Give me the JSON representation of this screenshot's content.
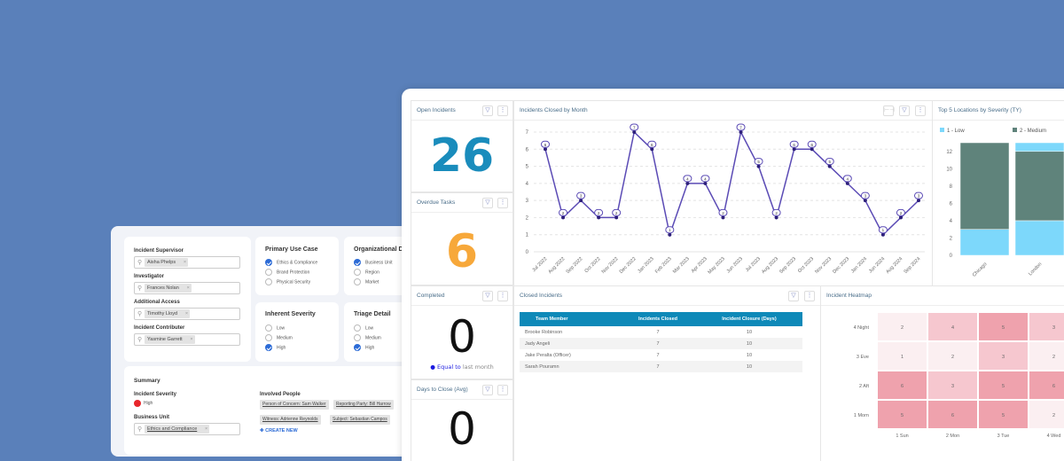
{
  "form": {
    "people": [
      {
        "label": "Incident Supervisor",
        "value": "Aisha Phelps"
      },
      {
        "label": "Investigator",
        "value": "Frances Nolan"
      },
      {
        "label": "Additional Access",
        "value": "Timothy Lloyd"
      },
      {
        "label": "Incident Contributer",
        "value": "Yasmine Garrett"
      }
    ],
    "primary_use_case": {
      "title": "Primary Use Case",
      "options": [
        {
          "label": "Ethics & Compliance",
          "checked": true
        },
        {
          "label": "Brand Protection",
          "checked": false
        },
        {
          "label": "Physical Security",
          "checked": false
        }
      ]
    },
    "org_drivers": {
      "title": "Organizational Dri",
      "options": [
        {
          "label": "Business Unit",
          "checked": true
        },
        {
          "label": "Region",
          "checked": false
        },
        {
          "label": "Market",
          "checked": false
        }
      ]
    },
    "inherent_severity": {
      "title": "Inherent Severity",
      "options": [
        {
          "label": "Low",
          "checked": false
        },
        {
          "label": "Medium",
          "checked": false
        },
        {
          "label": "High",
          "checked": true
        }
      ]
    },
    "triage": {
      "title": "Triage Detail",
      "options": [
        {
          "label": "Low",
          "checked": false
        },
        {
          "label": "Medium",
          "checked": false
        },
        {
          "label": "High",
          "checked": true
        }
      ]
    },
    "summary": {
      "title": "Summary",
      "severity_label": "Incident Severity",
      "severity_value": "High",
      "severity_color": "#e8262b",
      "bu_label": "Business Unit",
      "bu_value": "Ethics and Compliance",
      "involved_label": "Involved People",
      "involved": [
        "Person of Concern: Sam Walker",
        "Reporting Party: Bill Harrow",
        "Witness: Adrienne Reynolds",
        "Subject: Sebastian Campos"
      ],
      "create_new": "CREATE NEW"
    }
  },
  "kpis": {
    "open": {
      "title": "Open Incidents",
      "value": "26",
      "color": "#1a8cbc"
    },
    "overdue": {
      "title": "Overdue Tasks",
      "value": "6",
      "color": "#f7a83a"
    },
    "completed": {
      "title": "Completed",
      "value": "0",
      "compare_strong": "Equal to",
      "compare_rest": "last month"
    },
    "days": {
      "title": "Days to Close (Avg)",
      "value": "0"
    }
  },
  "line_panel": {
    "title": "Incidents Closed by Month"
  },
  "bar_panel": {
    "title": "Top 5 Locations by Severity (TY)"
  },
  "table_panel": {
    "title": "Closed Incidents",
    "columns": [
      "Team Member",
      "Incidents Closed",
      "Incident Closure (Days)"
    ],
    "rows": [
      [
        "Brooke Robinson",
        "7",
        "10"
      ],
      [
        "Jady Angeli",
        "7",
        "10"
      ],
      [
        "Jake Peralta (Officer)",
        "7",
        "10"
      ],
      [
        "Sarah Pouramn",
        "7",
        "10"
      ]
    ]
  },
  "heat_panel": {
    "title": "Incident Heatmap"
  },
  "chart_data": [
    {
      "type": "line",
      "title": "Incidents Closed by Month",
      "categories": [
        "Jul 2022",
        "Aug 2022",
        "Sep 2022",
        "Oct 2022",
        "Nov 2022",
        "Dec 2022",
        "Jan 2023",
        "Feb 2023",
        "Mar 2023",
        "Apr 2023",
        "May 2023",
        "Jun 2023",
        "Jul 2023",
        "Aug 2023",
        "Sep 2023",
        "Oct 2023",
        "Nov 2023",
        "Dec 2023",
        "Jan 2024",
        "Jun 2024",
        "Aug 2024",
        "Sep 2024"
      ],
      "values": [
        6,
        2,
        3,
        2,
        2,
        7,
        6,
        1,
        4,
        4,
        2,
        7,
        5,
        2,
        6,
        6,
        5,
        4,
        3,
        1,
        2,
        3
      ],
      "ylim": [
        0,
        7
      ],
      "yticks": [
        0,
        1,
        2,
        3,
        4,
        5,
        6,
        7
      ],
      "color": "#5b4bb5",
      "grid": true,
      "data_labels": true
    },
    {
      "type": "bar",
      "stacked": true,
      "title": "Top 5 Locations by Severity (TY)",
      "categories": [
        "Chicago",
        "London"
      ],
      "series": [
        {
          "name": "1 - Low",
          "values": [
            3,
            4
          ],
          "color": "#7dd8fb"
        },
        {
          "name": "2 - Medium",
          "values": [
            10,
            8
          ],
          "color": "#5f837b"
        },
        {
          "values": [
            0,
            1
          ],
          "color": "#7dd8fb"
        }
      ],
      "ylim": [
        0,
        13
      ],
      "yticks": [
        0,
        2,
        4,
        6,
        8,
        10,
        12
      ],
      "legend": "top"
    },
    {
      "type": "heatmap",
      "title": "Incident Heatmap",
      "x": [
        "1 Sun",
        "2 Mon",
        "3 Tue",
        "4 Wed"
      ],
      "y": [
        "4 Night",
        "3 Eve",
        "2 Aft",
        "1 Morn"
      ],
      "values": [
        [
          2,
          4,
          5,
          3
        ],
        [
          1,
          2,
          3,
          2
        ],
        [
          6,
          3,
          5,
          6
        ],
        [
          5,
          6,
          5,
          2
        ]
      ]
    }
  ]
}
